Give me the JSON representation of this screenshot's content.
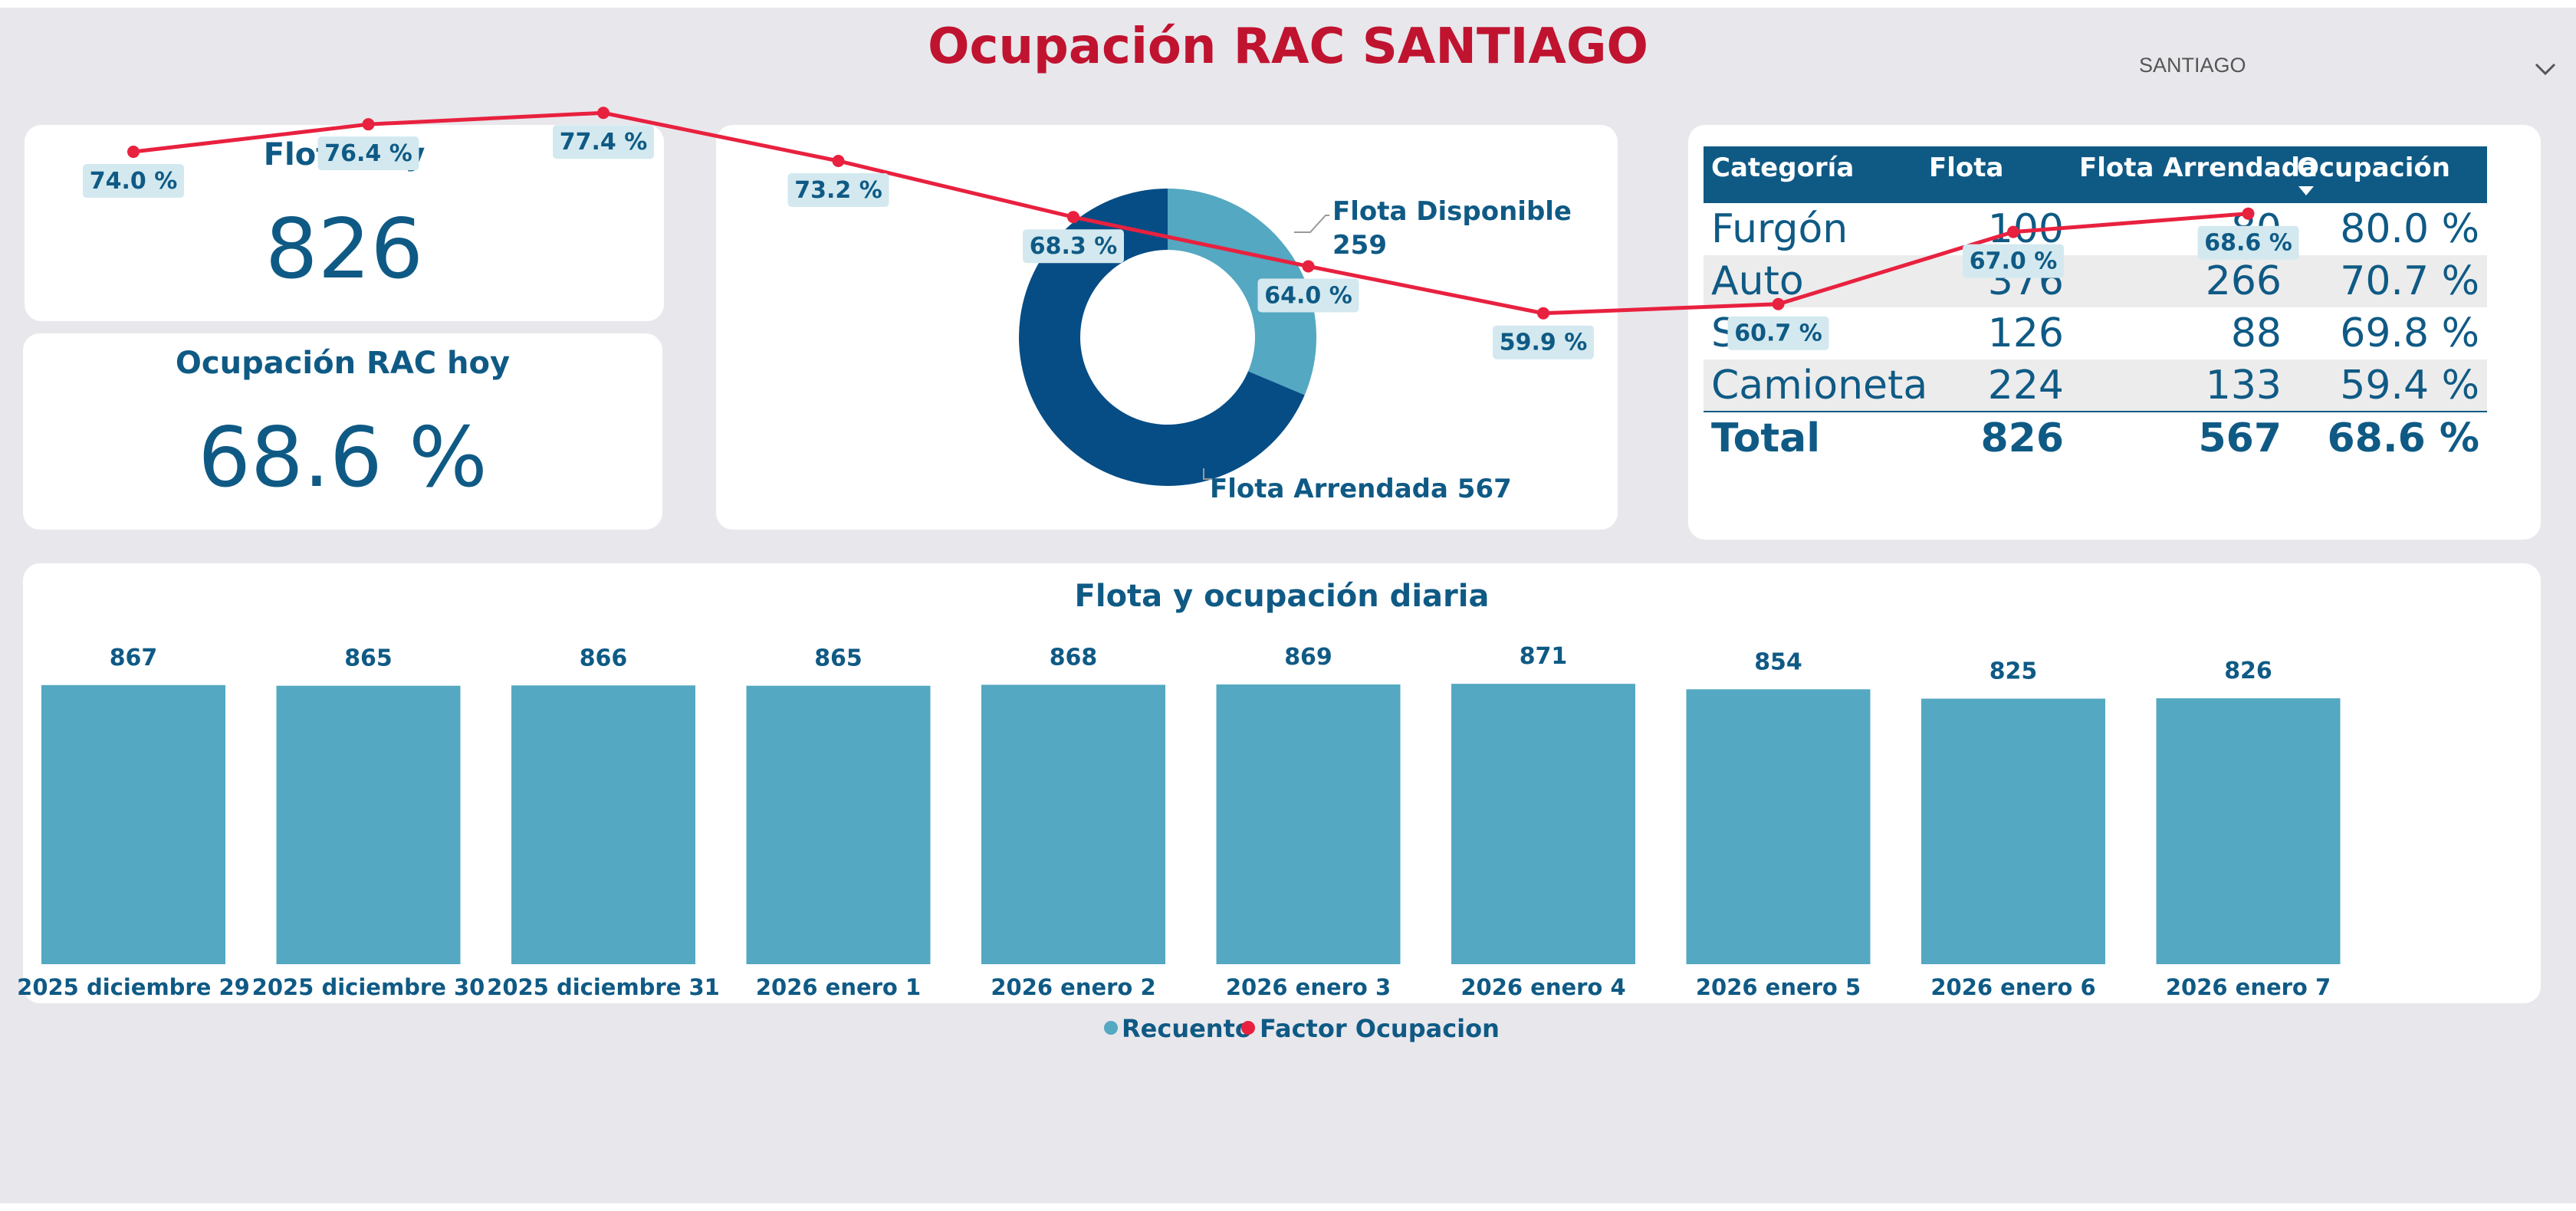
{
  "header": {
    "title": "Ocupación RAC SANTIAGO"
  },
  "slicer": {
    "value": "SANTIAGO",
    "icon": "chevron-down-icon"
  },
  "kpis": {
    "flota_hoy": {
      "title": "Flota hoy",
      "value": "826"
    },
    "ocupacion_hoy": {
      "title": "Ocupación RAC hoy",
      "value": "68.6 %"
    }
  },
  "donut": {
    "slices": [
      {
        "name": "Flota Disponible",
        "value": 259,
        "label_line1": "Flota Disponible",
        "label_line2": "259",
        "color": "#54a8c1"
      },
      {
        "name": "Flota Arrendada",
        "value": 567,
        "label_line1": "Flota Arrendada 567",
        "color": "#064d86"
      }
    ]
  },
  "table": {
    "columns": [
      "Categoría",
      "Flota",
      "Flota Arrendada",
      "Ocupación"
    ],
    "sort_icon": "sort-descending-icon",
    "rows": [
      [
        "Furgón",
        "100",
        "80",
        "80.0 %"
      ],
      [
        "Auto",
        "376",
        "266",
        "70.7 %"
      ],
      [
        "SUV",
        "126",
        "88",
        "69.8 %"
      ],
      [
        "Camioneta",
        "224",
        "133",
        "59.4 %"
      ]
    ],
    "total": [
      "Total",
      "826",
      "567",
      "68.6 %"
    ]
  },
  "daily": {
    "title": "Flota y ocupación diaria",
    "legend": {
      "bars": "Recuento",
      "line": "Factor Ocupacion"
    }
  },
  "colors": {
    "bar": "#54a8c1",
    "line": "#e8213f",
    "accent": "#0f5a85",
    "title": "#c0132f",
    "donut_dark": "#064d86"
  },
  "chart_data": [
    {
      "type": "pie",
      "categories": [
        "Flota Disponible",
        "Flota Arrendada"
      ],
      "values": [
        259,
        567
      ]
    },
    {
      "type": "bar",
      "title": "Flota y ocupación diaria",
      "categories": [
        "2025 diciembre 29",
        "2025 diciembre 30",
        "2025 diciembre 31",
        "2026 enero 1",
        "2026 enero 2",
        "2026 enero 3",
        "2026 enero 4",
        "2026 enero 5",
        "2026 enero 6",
        "2026 enero 7"
      ],
      "series": [
        {
          "name": "Recuento",
          "type": "bar",
          "values": [
            867,
            865,
            866,
            865,
            868,
            869,
            871,
            854,
            825,
            826
          ],
          "labels": [
            "867",
            "865",
            "866",
            "865",
            "868",
            "869",
            "871",
            "854",
            "825",
            "826"
          ]
        },
        {
          "name": "Factor Ocupacion",
          "type": "line",
          "values": [
            74.0,
            76.4,
            77.4,
            73.2,
            68.3,
            64.0,
            59.9,
            60.7,
            67.0,
            68.6
          ],
          "labels": [
            "74.0 %",
            "76.4 %",
            "77.4 %",
            "73.2 %",
            "68.3 %",
            "64.0 %",
            "59.9 %",
            "60.7 %",
            "67.0 %",
            "68.6 %"
          ]
        }
      ],
      "legend": "bottom"
    }
  ]
}
